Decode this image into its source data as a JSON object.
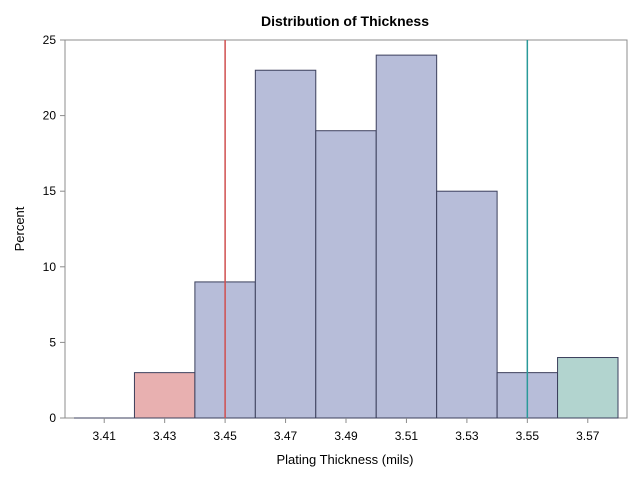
{
  "chart_data": {
    "type": "histogram",
    "title": "Distribution of Thickness",
    "xlabel": "Plating Thickness (mils)",
    "ylabel": "Percent",
    "xlim": [
      3.4,
      3.58
    ],
    "ylim": [
      0,
      25
    ],
    "bin_width": 0.01,
    "x_ticks": [
      "3.41",
      "3.43",
      "3.45",
      "3.47",
      "3.49",
      "3.51",
      "3.53",
      "3.55",
      "3.57"
    ],
    "y_ticks": [
      "0",
      "5",
      "10",
      "15",
      "20",
      "25"
    ],
    "bins": [
      {
        "x0": 3.4,
        "x1": 3.41,
        "value": 0
      },
      {
        "x0": 3.41,
        "x1": 3.42,
        "value": 0
      },
      {
        "x0": 3.42,
        "x1": 3.44,
        "value": 3
      },
      {
        "x0": 3.44,
        "x1": 3.46,
        "value": 9
      },
      {
        "x0": 3.46,
        "x1": 3.48,
        "value": 23
      },
      {
        "x0": 3.48,
        "x1": 3.5,
        "value": 19
      },
      {
        "x0": 3.5,
        "x1": 3.52,
        "value": 24
      },
      {
        "x0": 3.52,
        "x1": 3.54,
        "value": 15
      },
      {
        "x0": 3.54,
        "x1": 3.56,
        "value": 3
      },
      {
        "x0": 3.56,
        "x1": 3.58,
        "value": 4
      }
    ],
    "reference_lines": [
      {
        "x": 3.45,
        "color": "#d05050"
      },
      {
        "x": 3.55,
        "color": "#2a9a9a"
      }
    ],
    "colors": {
      "below_lower": "#e8b0b0",
      "in_spec": "#b7bdd9",
      "above_upper": "#b2d4cf",
      "bar_outline": "#3b3f5c",
      "frame": "#8c8c8c"
    },
    "grid": false,
    "legend": "none"
  }
}
